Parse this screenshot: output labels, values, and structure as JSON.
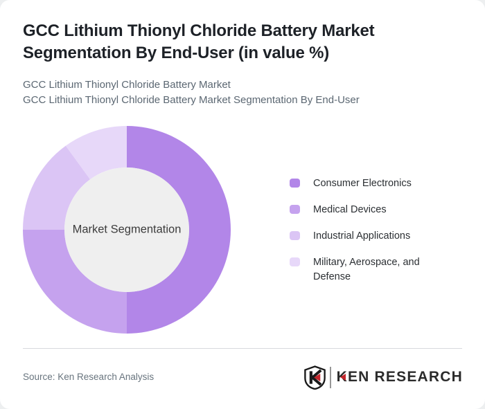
{
  "header": {
    "title": "GCC Lithium Thionyl Chloride Battery Market Segmentation By End-User (in value %)",
    "subtitle_lines": [
      "GCC Lithium Thionyl Chloride Battery Market",
      "GCC Lithium Thionyl Chloride Battery Market Segmentation By End-User"
    ]
  },
  "chart_data": {
    "type": "pie",
    "variant": "donut",
    "title": "GCC Lithium Thionyl Chloride Battery Market Segmentation By End-User (in value %)",
    "center_label": "Market Segmentation",
    "categories": [
      "Consumer Electronics",
      "Medical Devices",
      "Industrial Applications",
      "Military, Aerospace, and Defense"
    ],
    "values": [
      50,
      25,
      15,
      10
    ],
    "unit": "value %",
    "colors": [
      "#b286e8",
      "#c5a2ee",
      "#dbc5f5",
      "#e7d8f9"
    ],
    "start_angle_deg": 0,
    "direction": "clockwise",
    "inner_radius_ratio": 0.6,
    "center_fill": "#efefef",
    "legend_position": "right"
  },
  "footer": {
    "source": "Source: Ken Research Analysis",
    "brand": "KEN RESEARCH",
    "brand_dark": "#2b2b2b",
    "brand_red": "#c4252b"
  }
}
